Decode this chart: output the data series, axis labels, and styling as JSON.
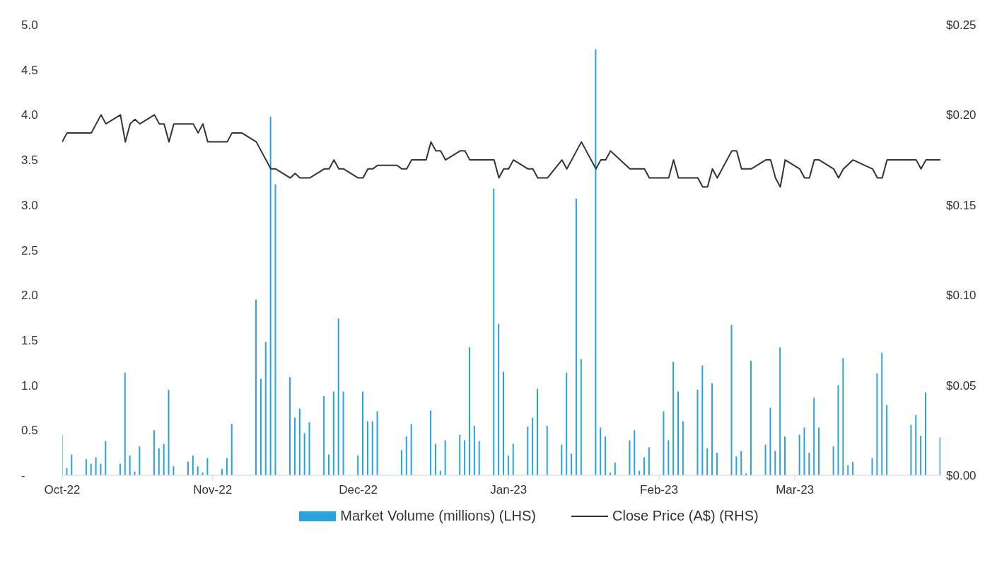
{
  "chart_data": {
    "type": "bar",
    "legend": "bottom",
    "grid": false,
    "xlim": [
      "2022-10-01",
      "2023-03-31"
    ],
    "xticks": [
      {
        "value": "2022-10-01",
        "label": "Oct-22"
      },
      {
        "value": "2022-11-01",
        "label": "Nov-22"
      },
      {
        "value": "2022-12-01",
        "label": "Dec-22"
      },
      {
        "value": "2023-01-01",
        "label": "Jan-23"
      },
      {
        "value": "2023-02-01",
        "label": "Feb-23"
      },
      {
        "value": "2023-03-01",
        "label": "Mar-23"
      }
    ],
    "ylim": [
      0,
      5
    ],
    "yticks": [
      {
        "value": 0,
        "label": "-"
      },
      0.5,
      {
        "value": 1,
        "label": "1.0"
      },
      1.5,
      {
        "value": 2,
        "label": "2.0"
      },
      2.5,
      {
        "value": 3,
        "label": "3.0"
      },
      3.5,
      {
        "value": 4,
        "label": "4.0"
      },
      4.5,
      {
        "value": 5,
        "label": "5.0"
      }
    ],
    "y2lim": [
      0,
      0.25
    ],
    "y2ticks": [
      {
        "value": 0,
        "label": "$0.00"
      },
      {
        "value": 0.05,
        "label": "$0.05"
      },
      {
        "value": 0.1,
        "label": "$0.10"
      },
      {
        "value": 0.15,
        "label": "$0.15"
      },
      {
        "value": 0.2,
        "label": "$0.20"
      },
      {
        "value": 0.25,
        "label": "$0.25"
      }
    ],
    "series": [
      {
        "name": "Market Volume (millions) (LHS)",
        "color": "#29a3dd",
        "x": [
          "2022-10-01",
          "2022-10-02",
          "2022-10-03",
          "2022-10-06",
          "2022-10-07",
          "2022-10-08",
          "2022-10-09",
          "2022-10-10",
          "2022-10-13",
          "2022-10-14",
          "2022-10-15",
          "2022-10-16",
          "2022-10-17",
          "2022-10-20",
          "2022-10-21",
          "2022-10-22",
          "2022-10-23",
          "2022-10-24",
          "2022-10-27",
          "2022-10-28",
          "2022-10-29",
          "2022-10-30",
          "2022-10-31",
          "2022-11-03",
          "2022-11-04",
          "2022-11-05",
          "2022-11-10",
          "2022-11-11",
          "2022-11-12",
          "2022-11-13",
          "2022-11-14",
          "2022-11-17",
          "2022-11-18",
          "2022-11-19",
          "2022-11-20",
          "2022-11-21",
          "2022-11-24",
          "2022-11-25",
          "2022-11-26",
          "2022-11-27",
          "2022-11-28",
          "2022-12-01",
          "2022-12-02",
          "2022-12-03",
          "2022-12-04",
          "2022-12-05",
          "2022-12-10",
          "2022-12-11",
          "2022-12-12",
          "2022-12-16",
          "2022-12-17",
          "2022-12-18",
          "2022-12-19",
          "2022-12-22",
          "2022-12-23",
          "2022-12-24",
          "2022-12-25",
          "2022-12-26",
          "2022-12-29",
          "2022-12-30",
          "2022-12-31",
          "2023-01-01",
          "2023-01-02",
          "2023-01-05",
          "2023-01-06",
          "2023-01-07",
          "2023-01-09",
          "2023-01-12",
          "2023-01-13",
          "2023-01-14",
          "2023-01-15",
          "2023-01-16",
          "2023-01-19",
          "2023-01-20",
          "2023-01-21",
          "2023-01-22",
          "2023-01-23",
          "2023-01-26",
          "2023-01-27",
          "2023-01-28",
          "2023-01-29",
          "2023-01-30",
          "2023-02-02",
          "2023-02-03",
          "2023-02-04",
          "2023-02-05",
          "2023-02-06",
          "2023-02-09",
          "2023-02-10",
          "2023-02-11",
          "2023-02-12",
          "2023-02-13",
          "2023-02-16",
          "2023-02-17",
          "2023-02-18",
          "2023-02-19",
          "2023-02-20",
          "2023-02-23",
          "2023-02-24",
          "2023-02-25",
          "2023-02-26",
          "2023-02-27",
          "2023-03-02",
          "2023-03-03",
          "2023-03-04",
          "2023-03-05",
          "2023-03-06",
          "2023-03-09",
          "2023-03-10",
          "2023-03-11",
          "2023-03-12",
          "2023-03-13",
          "2023-03-17",
          "2023-03-18",
          "2023-03-19",
          "2023-03-20",
          "2023-03-25",
          "2023-03-26",
          "2023-03-27",
          "2023-03-28",
          "2023-03-31"
        ],
        "values": [
          0.45,
          0.08,
          0.23,
          0.18,
          0.13,
          0.2,
          0.13,
          0.38,
          0.13,
          1.14,
          0.22,
          0.04,
          0.32,
          0.5,
          0.3,
          0.35,
          0.95,
          0.1,
          0.15,
          0.22,
          0.1,
          0.03,
          0.19,
          0.07,
          0.19,
          0.57,
          1.95,
          1.07,
          1.48,
          3.98,
          3.23,
          1.09,
          0.64,
          0.74,
          0.47,
          0.59,
          0.88,
          0.23,
          0.93,
          1.74,
          0.93,
          0.22,
          0.93,
          0.6,
          0.6,
          0.71,
          0.28,
          0.43,
          0.57,
          0.72,
          0.35,
          0.05,
          0.39,
          0.45,
          0.39,
          1.42,
          0.55,
          0.38,
          3.18,
          1.68,
          1.15,
          0.22,
          0.35,
          0.54,
          0.64,
          0.96,
          0.55,
          0.34,
          1.14,
          0.24,
          3.07,
          1.29,
          4.73,
          0.53,
          0.43,
          0.03,
          0.14,
          0.39,
          0.5,
          0.05,
          0.2,
          0.31,
          0.71,
          0.39,
          1.26,
          0.93,
          0.6,
          0.95,
          1.22,
          0.3,
          1.02,
          0.25,
          1.67,
          0.21,
          0.27,
          0.02,
          1.27,
          0.34,
          0.75,
          0.27,
          1.42,
          0.43,
          0.45,
          0.53,
          0.25,
          0.86,
          0.53,
          0.32,
          1.0,
          1.3,
          0.11,
          0.15,
          0.19,
          1.13,
          1.36,
          0.78,
          0.56,
          0.67,
          0.44,
          0.92,
          0.42
        ]
      },
      {
        "name": "Close Price (A$) (RHS)",
        "type": "line",
        "axis": "y2",
        "color": "#2d3340",
        "x": [
          "2022-10-01",
          "2022-10-02",
          "2022-10-03",
          "2022-10-06",
          "2022-10-07",
          "2022-10-08",
          "2022-10-09",
          "2022-10-10",
          "2022-10-13",
          "2022-10-14",
          "2022-10-15",
          "2022-10-16",
          "2022-10-17",
          "2022-10-20",
          "2022-10-21",
          "2022-10-22",
          "2022-10-23",
          "2022-10-24",
          "2022-10-27",
          "2022-10-28",
          "2022-10-29",
          "2022-10-30",
          "2022-10-31",
          "2022-11-03",
          "2022-11-04",
          "2022-11-05",
          "2022-11-06",
          "2022-11-07",
          "2022-11-10",
          "2022-11-11",
          "2022-11-12",
          "2022-11-13",
          "2022-11-14",
          "2022-11-17",
          "2022-11-18",
          "2022-11-19",
          "2022-11-20",
          "2022-11-21",
          "2022-11-24",
          "2022-11-25",
          "2022-11-26",
          "2022-11-27",
          "2022-11-28",
          "2022-12-01",
          "2022-12-02",
          "2022-12-03",
          "2022-12-04",
          "2022-12-05",
          "2022-12-08",
          "2022-12-09",
          "2022-12-10",
          "2022-12-11",
          "2022-12-12",
          "2022-12-15",
          "2022-12-16",
          "2022-12-17",
          "2022-12-18",
          "2022-12-19",
          "2022-12-22",
          "2022-12-23",
          "2022-12-24",
          "2022-12-25",
          "2022-12-26",
          "2022-12-29",
          "2022-12-30",
          "2022-12-31",
          "2023-01-01",
          "2023-01-02",
          "2023-01-05",
          "2023-01-06",
          "2023-01-07",
          "2023-01-08",
          "2023-01-09",
          "2023-01-12",
          "2023-01-13",
          "2023-01-14",
          "2023-01-15",
          "2023-01-16",
          "2023-01-19",
          "2023-01-20",
          "2023-01-21",
          "2023-01-22",
          "2023-01-23",
          "2023-01-26",
          "2023-01-27",
          "2023-01-28",
          "2023-01-29",
          "2023-01-30",
          "2023-02-02",
          "2023-02-03",
          "2023-02-04",
          "2023-02-05",
          "2023-02-06",
          "2023-02-09",
          "2023-02-10",
          "2023-02-11",
          "2023-02-12",
          "2023-02-13",
          "2023-02-16",
          "2023-02-17",
          "2023-02-18",
          "2023-02-19",
          "2023-02-20",
          "2023-02-23",
          "2023-02-24",
          "2023-02-25",
          "2023-02-26",
          "2023-02-27",
          "2023-03-02",
          "2023-03-03",
          "2023-03-04",
          "2023-03-05",
          "2023-03-06",
          "2023-03-09",
          "2023-03-10",
          "2023-03-11",
          "2023-03-12",
          "2023-03-13",
          "2023-03-17",
          "2023-03-18",
          "2023-03-19",
          "2023-03-20",
          "2023-03-25",
          "2023-03-26",
          "2023-03-27",
          "2023-03-28",
          "2023-03-31"
        ],
        "values": [
          0.185,
          0.19,
          0.19,
          0.19,
          0.19,
          0.195,
          0.2,
          0.195,
          0.2,
          0.185,
          0.195,
          0.1975,
          0.195,
          0.2,
          0.195,
          0.195,
          0.185,
          0.195,
          0.195,
          0.195,
          0.19,
          0.195,
          0.185,
          0.185,
          0.185,
          0.19,
          0.19,
          0.19,
          0.185,
          0.18,
          0.175,
          0.17,
          0.17,
          0.165,
          0.1675,
          0.165,
          0.165,
          0.165,
          0.17,
          0.17,
          0.175,
          0.17,
          0.17,
          0.165,
          0.165,
          0.17,
          0.17,
          0.172,
          0.172,
          0.172,
          0.17,
          0.17,
          0.175,
          0.175,
          0.185,
          0.18,
          0.18,
          0.175,
          0.18,
          0.18,
          0.175,
          0.175,
          0.175,
          0.175,
          0.165,
          0.17,
          0.17,
          0.175,
          0.17,
          0.17,
          0.165,
          0.165,
          0.165,
          0.175,
          0.17,
          0.175,
          0.18,
          0.185,
          0.17,
          0.175,
          0.175,
          0.18,
          0.1775,
          0.17,
          0.17,
          0.17,
          0.17,
          0.165,
          0.165,
          0.165,
          0.175,
          0.165,
          0.165,
          0.165,
          0.16,
          0.16,
          0.17,
          0.165,
          0.18,
          0.18,
          0.17,
          0.17,
          0.17,
          0.175,
          0.175,
          0.165,
          0.16,
          0.175,
          0.17,
          0.165,
          0.165,
          0.175,
          0.175,
          0.17,
          0.165,
          0.17,
          0.1725,
          0.175,
          0.17,
          0.165,
          0.165,
          0.175,
          0.175,
          0.175,
          0.17,
          0.175,
          0.175
        ]
      }
    ]
  }
}
